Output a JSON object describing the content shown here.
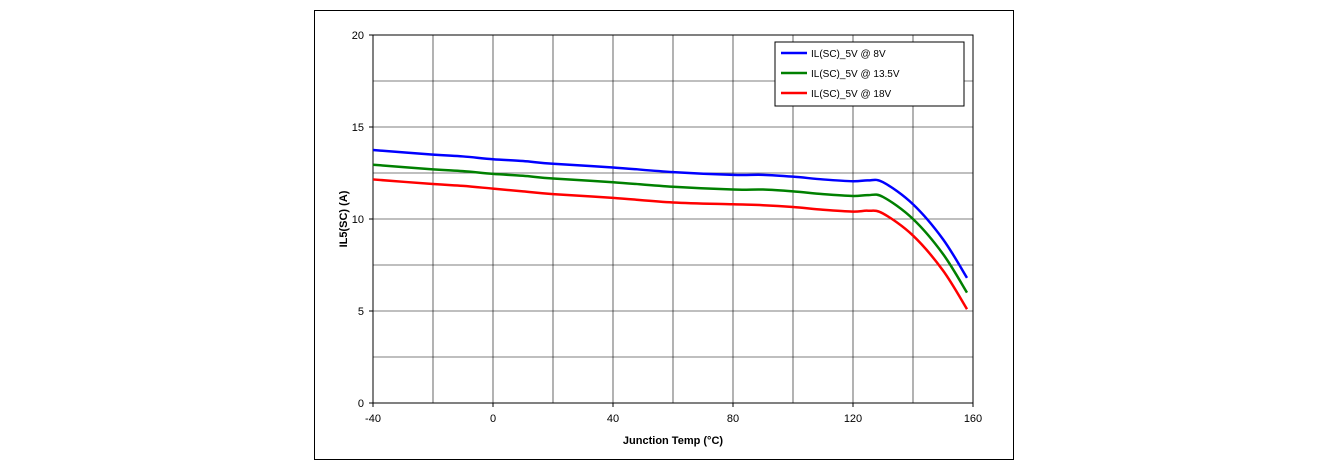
{
  "chart_data": {
    "type": "line",
    "title": "",
    "xlabel": "Junction Temp (°C)",
    "ylabel": "IL5(SC)  (A)",
    "xlim": [
      -40,
      160
    ],
    "ylim": [
      0,
      20
    ],
    "xticks": [
      -40,
      0,
      40,
      80,
      120,
      160
    ],
    "xtick_labels": [
      "-40",
      "0",
      "40",
      "80",
      "120",
      "160"
    ],
    "yticks": [
      0,
      5,
      10,
      15,
      20
    ],
    "ytick_labels": [
      "0",
      "5",
      "10",
      "15",
      "20"
    ],
    "x_gridlines": [
      -40,
      -20,
      0,
      20,
      40,
      60,
      80,
      100,
      120,
      140,
      160
    ],
    "y_gridlines": [
      0,
      2.5,
      5,
      7.5,
      10,
      12.5,
      15,
      17.5,
      20
    ],
    "grid": true,
    "legend_position": "top-right",
    "series": [
      {
        "name": "IL(SC)_5V @ 8V",
        "color": "#0000ff",
        "x": [
          -40,
          -20,
          -10,
          0,
          10,
          20,
          40,
          60,
          80,
          90,
          100,
          110,
          120,
          125,
          130,
          140,
          150,
          158
        ],
        "y": [
          13.75,
          13.5,
          13.4,
          13.25,
          13.15,
          13.0,
          12.8,
          12.55,
          12.4,
          12.4,
          12.3,
          12.15,
          12.05,
          12.1,
          12.0,
          10.8,
          8.9,
          6.8
        ]
      },
      {
        "name": "IL(SC)_5V @ 13.5V",
        "color": "#008000",
        "x": [
          -40,
          -20,
          -10,
          0,
          10,
          20,
          40,
          60,
          80,
          90,
          100,
          110,
          120,
          125,
          130,
          140,
          150,
          158
        ],
        "y": [
          12.95,
          12.7,
          12.6,
          12.45,
          12.35,
          12.2,
          12.0,
          11.75,
          11.6,
          11.6,
          11.5,
          11.35,
          11.25,
          11.3,
          11.2,
          10.0,
          8.1,
          6.0
        ]
      },
      {
        "name": "IL(SC)_5V @ 18V",
        "color": "#ff0000",
        "x": [
          -40,
          -20,
          -10,
          0,
          10,
          20,
          40,
          60,
          80,
          90,
          100,
          110,
          120,
          125,
          130,
          140,
          150,
          158
        ],
        "y": [
          12.15,
          11.9,
          11.8,
          11.65,
          11.5,
          11.35,
          11.15,
          10.9,
          10.8,
          10.75,
          10.65,
          10.5,
          10.4,
          10.45,
          10.3,
          9.1,
          7.2,
          5.1
        ]
      }
    ]
  }
}
